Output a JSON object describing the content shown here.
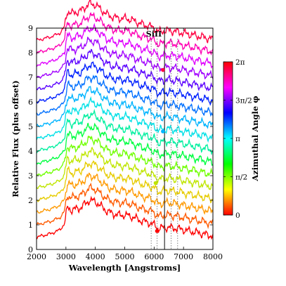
{
  "chart_data": {
    "type": "line",
    "xlabel": "Wavelength [Angstroms]",
    "ylabel": "Relative Flux (plus offset)",
    "xlim": [
      2000,
      8000
    ],
    "ylim": [
      0,
      9
    ],
    "x_ticks": [
      "2000",
      "3000",
      "4000",
      "5000",
      "6000",
      "7000",
      "8000"
    ],
    "y_ticks": [
      "0",
      "1",
      "2",
      "3",
      "4",
      "5",
      "6",
      "7",
      "8",
      "9"
    ],
    "annotation": {
      "text": "SiII",
      "wavelength": 6355
    },
    "vertical_lines": {
      "solid": [
        6355
      ],
      "dotted": [
        5900,
        6100,
        6580,
        6800
      ]
    },
    "colorbar": {
      "label": "Azimuthal Angle φ",
      "ticks": [
        {
          "label": "0",
          "value": 0
        },
        {
          "label": "π/2",
          "value": 0.25
        },
        {
          "label": "π",
          "value": 0.5
        },
        {
          "label": "3π/2",
          "value": 0.75
        },
        {
          "label": "2π",
          "value": 1.0
        }
      ],
      "colors": [
        "#ff0000",
        "#ff8000",
        "#ffff00",
        "#80ff00",
        "#00ff00",
        "#00ff80",
        "#00ffff",
        "#0080ff",
        "#0000ff",
        "#8000ff",
        "#ff00ff",
        "#ff0080",
        "#ff0000"
      ]
    },
    "series_profile": {
      "wavelengths": [
        2000,
        2500,
        2800,
        2950,
        3050,
        3200,
        3500,
        3800,
        4000,
        4200,
        4400,
        4600,
        4800,
        5000,
        5200,
        5400,
        5600,
        5800,
        6000,
        6150,
        6300,
        6500,
        6800,
        7200,
        7600,
        8000
      ],
      "relative_flux": [
        0.0,
        0.15,
        0.3,
        0.55,
        1.2,
        1.1,
        1.2,
        1.5,
        1.45,
        1.25,
        1.05,
        0.95,
        0.9,
        0.9,
        0.85,
        0.75,
        0.65,
        0.6,
        0.5,
        0.35,
        0.38,
        0.4,
        0.35,
        0.25,
        0.15,
        0.05
      ]
    },
    "series": [
      {
        "offset": 0.5,
        "phi_fraction": 0.0,
        "color": "#ff0000",
        "marker": {
          "wavelength": 6100,
          "flux": 0.75
        }
      },
      {
        "offset": 1.0,
        "phi_fraction": 0.06,
        "color": "#ff5a00"
      },
      {
        "offset": 1.5,
        "phi_fraction": 0.12,
        "color": "#ff9a00"
      },
      {
        "offset": 2.0,
        "phi_fraction": 0.18,
        "color": "#e6cc00"
      },
      {
        "offset": 2.5,
        "phi_fraction": 0.24,
        "color": "#bfe600",
        "marker": {
          "wavelength": 6050,
          "flux": 2.7
        }
      },
      {
        "offset": 3.0,
        "phi_fraction": 0.3,
        "color": "#6fff00"
      },
      {
        "offset": 3.5,
        "phi_fraction": 0.36,
        "color": "#00ff40"
      },
      {
        "offset": 4.0,
        "phi_fraction": 0.42,
        "color": "#00f0a0"
      },
      {
        "offset": 4.5,
        "phi_fraction": 0.48,
        "color": "#00e0e6"
      },
      {
        "offset": 5.0,
        "phi_fraction": 0.54,
        "color": "#00b4ff",
        "marker": {
          "wavelength": 6300,
          "flux": 4.8
        }
      },
      {
        "offset": 5.5,
        "phi_fraction": 0.6,
        "color": "#0070ff"
      },
      {
        "offset": 6.0,
        "phi_fraction": 0.66,
        "color": "#0020ff"
      },
      {
        "offset": 6.5,
        "phi_fraction": 0.72,
        "color": "#5a00ff"
      },
      {
        "offset": 7.0,
        "phi_fraction": 0.78,
        "color": "#a000ff"
      },
      {
        "offset": 7.5,
        "phi_fraction": 0.84,
        "color": "#e000ff"
      },
      {
        "offset": 8.0,
        "phi_fraction": 0.9,
        "color": "#ff00b4"
      },
      {
        "offset": 8.5,
        "phi_fraction": 0.96,
        "color": "#ff0040",
        "marker": {
          "wavelength": 6300,
          "flux": 7.3
        }
      }
    ]
  }
}
